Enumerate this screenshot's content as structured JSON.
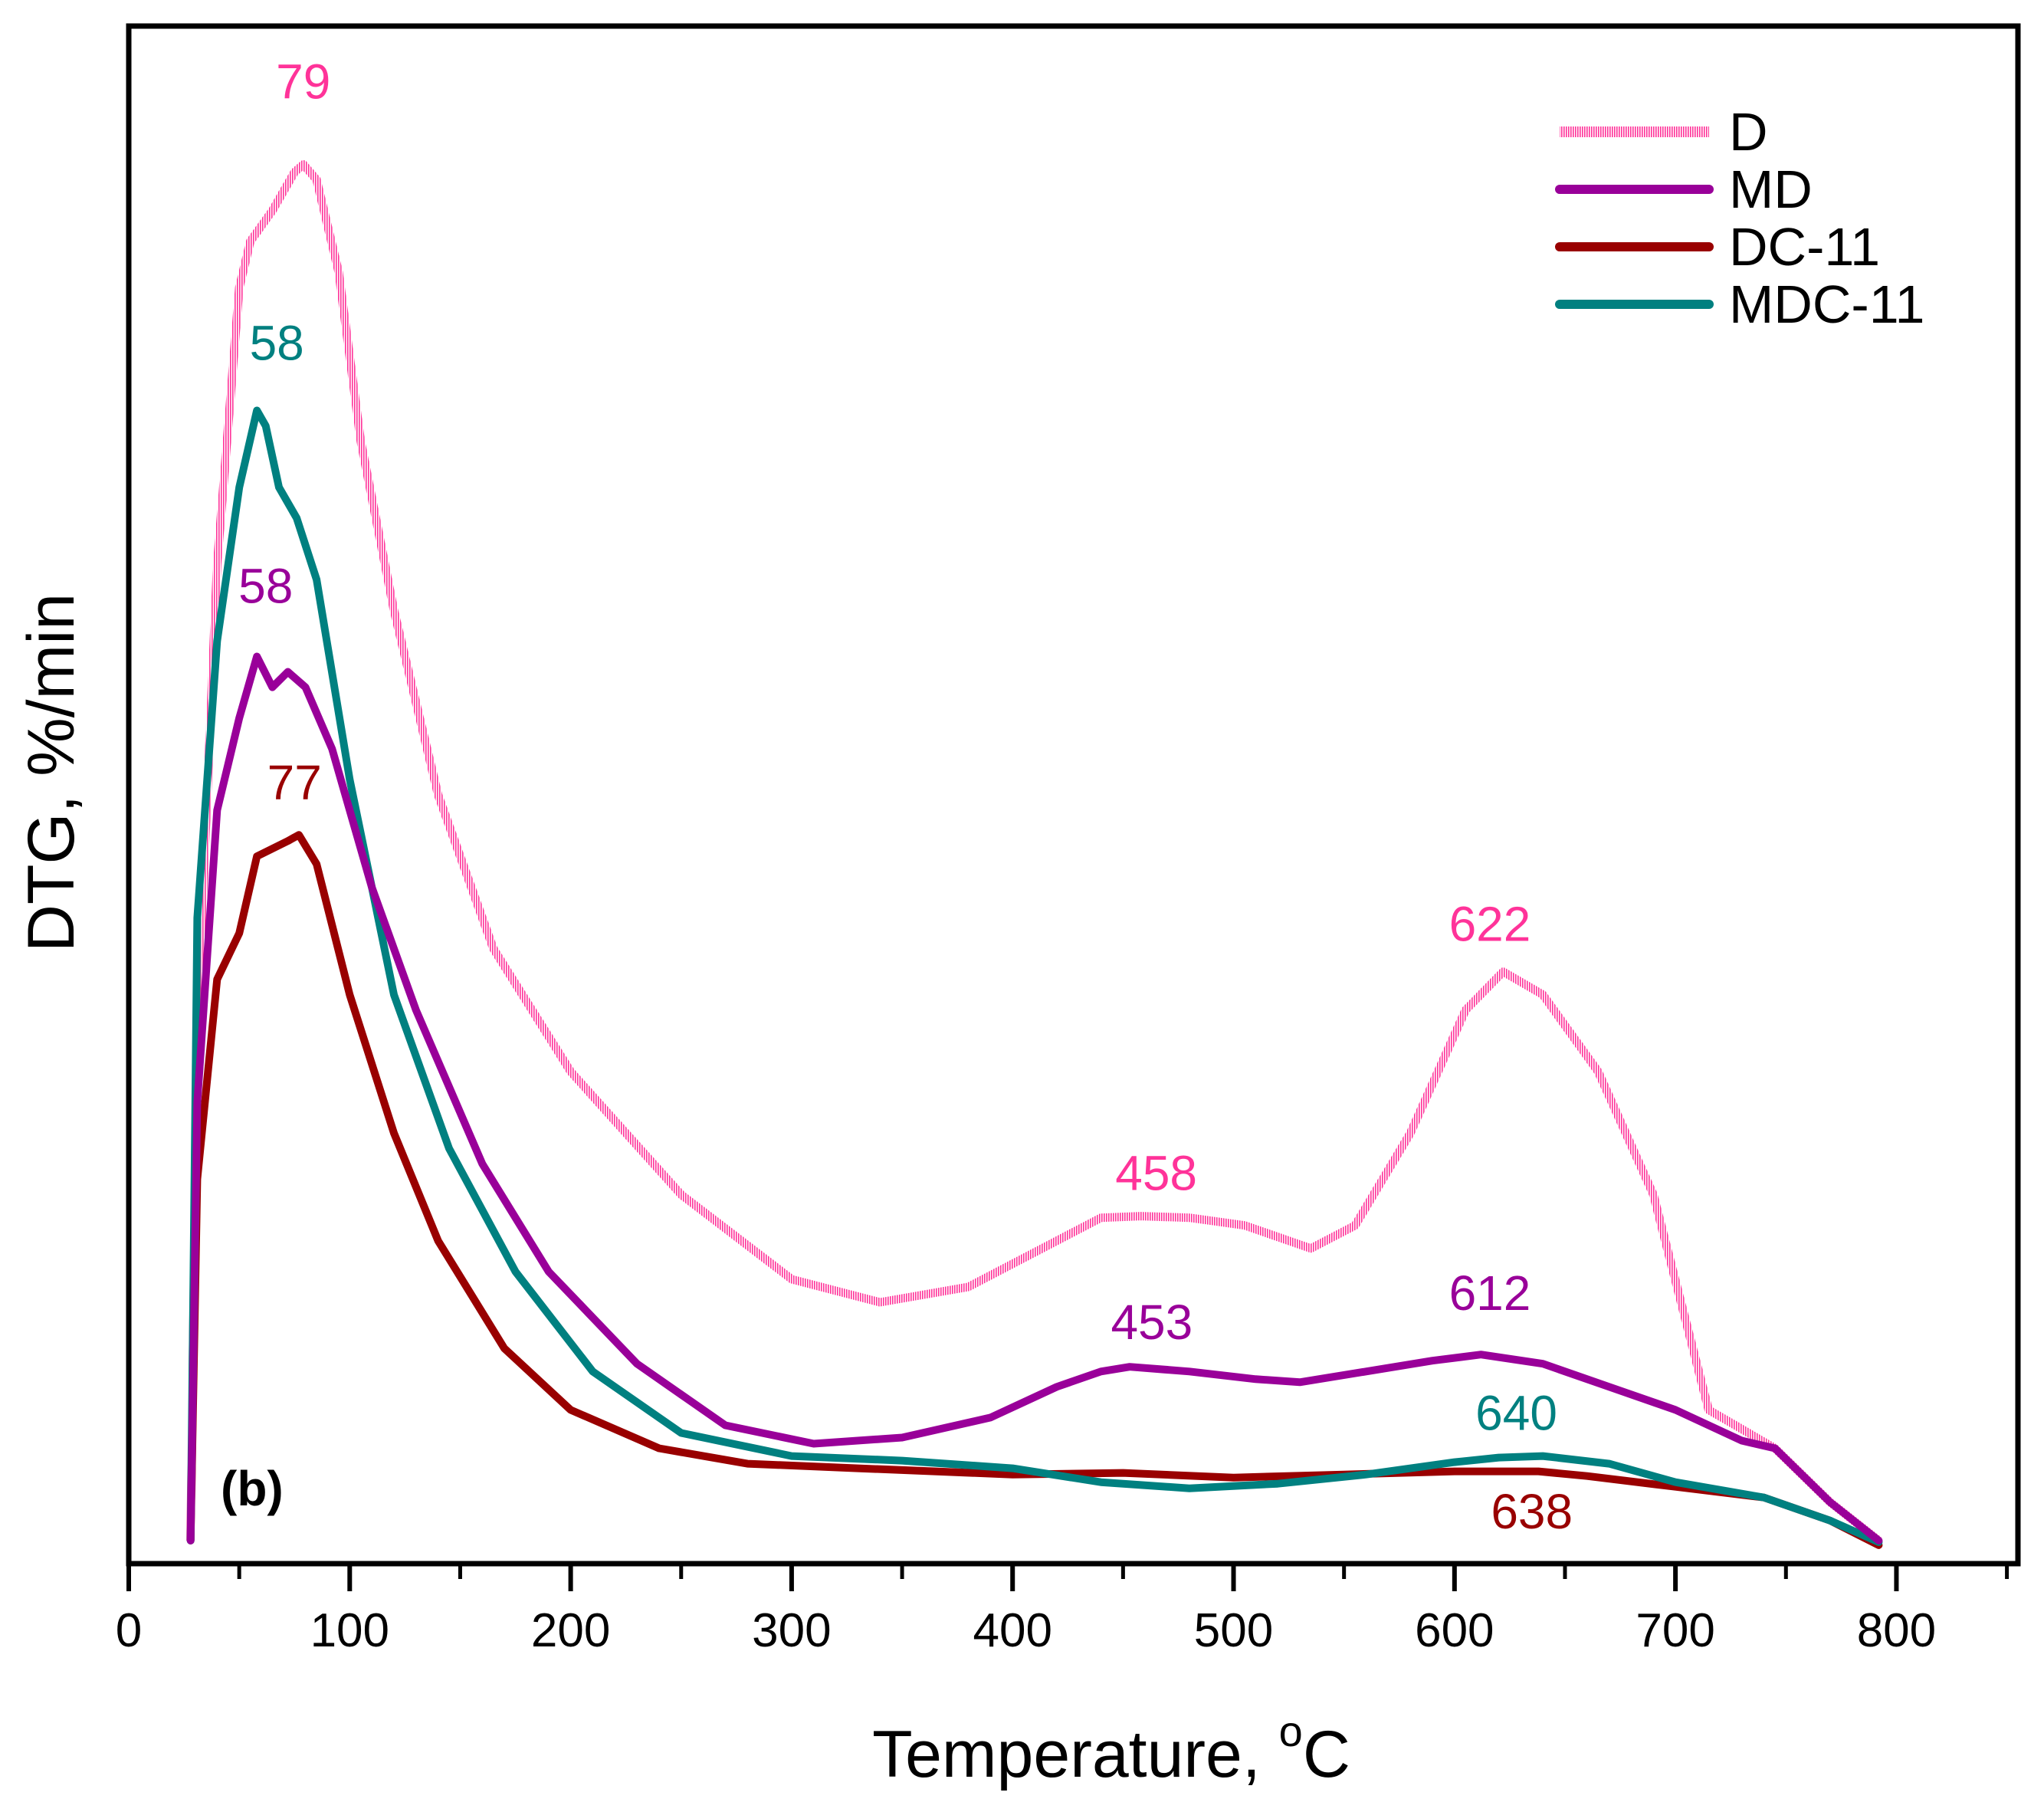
{
  "chart_data": {
    "type": "line",
    "panel_label": "(b)",
    "xlabel": "Temperature, ",
    "xlabel_sup": "o",
    "xlabel_suffix": "C",
    "ylabel": "DTG, %/min",
    "xlim": [
      0,
      855
    ],
    "ylim": [
      0,
      100
    ],
    "xticks": [
      0,
      100,
      200,
      300,
      400,
      500,
      600,
      700,
      800
    ],
    "y_tick_labels_shown": false,
    "legend_position": "top-right",
    "series": [
      {
        "name": "D",
        "color": "#ff3399",
        "style": "hatched",
        "points": [
          [
            28,
            1.5
          ],
          [
            31,
            35
          ],
          [
            40,
            65
          ],
          [
            50,
            83
          ],
          [
            55,
            86
          ],
          [
            65,
            88
          ],
          [
            75,
            90.5
          ],
          [
            79,
            91
          ],
          [
            85,
            90
          ],
          [
            95,
            84
          ],
          [
            105,
            73
          ],
          [
            120,
            62
          ],
          [
            140,
            50
          ],
          [
            165,
            40
          ],
          [
            200,
            32
          ],
          [
            250,
            24
          ],
          [
            300,
            18.5
          ],
          [
            340,
            17
          ],
          [
            380,
            18
          ],
          [
            420,
            21
          ],
          [
            440,
            22.5
          ],
          [
            458,
            22.6
          ],
          [
            480,
            22.5
          ],
          [
            505,
            22
          ],
          [
            535,
            20.5
          ],
          [
            555,
            22
          ],
          [
            580,
            28
          ],
          [
            605,
            36
          ],
          [
            622,
            38.5
          ],
          [
            640,
            37
          ],
          [
            665,
            32
          ],
          [
            690,
            24
          ],
          [
            715,
            10
          ],
          [
            745,
            7.5
          ],
          [
            770,
            4
          ],
          [
            792,
            1.5
          ]
        ]
      },
      {
        "name": "MD",
        "color": "#990099",
        "style": "solid",
        "points": [
          [
            28,
            1.5
          ],
          [
            31,
            30
          ],
          [
            40,
            49
          ],
          [
            50,
            55
          ],
          [
            58,
            59
          ],
          [
            65,
            57
          ],
          [
            72,
            58
          ],
          [
            80,
            57
          ],
          [
            92,
            53
          ],
          [
            110,
            44
          ],
          [
            130,
            36
          ],
          [
            160,
            26
          ],
          [
            190,
            19
          ],
          [
            230,
            13
          ],
          [
            270,
            9
          ],
          [
            310,
            7.8
          ],
          [
            350,
            8.2
          ],
          [
            390,
            9.5
          ],
          [
            420,
            11.5
          ],
          [
            440,
            12.5
          ],
          [
            453,
            12.8
          ],
          [
            480,
            12.5
          ],
          [
            510,
            12
          ],
          [
            530,
            11.8
          ],
          [
            560,
            12.5
          ],
          [
            590,
            13.2
          ],
          [
            612,
            13.6
          ],
          [
            640,
            13
          ],
          [
            670,
            11.5
          ],
          [
            700,
            10
          ],
          [
            730,
            8
          ],
          [
            745,
            7.5
          ],
          [
            770,
            4
          ],
          [
            792,
            1.5
          ]
        ]
      },
      {
        "name": "DC-11",
        "color": "#990000",
        "style": "solid",
        "points": [
          [
            28,
            1.5
          ],
          [
            31,
            25
          ],
          [
            40,
            38
          ],
          [
            50,
            41
          ],
          [
            58,
            46
          ],
          [
            65,
            46.5
          ],
          [
            72,
            47
          ],
          [
            77,
            47.4
          ],
          [
            85,
            45.5
          ],
          [
            100,
            37
          ],
          [
            120,
            28
          ],
          [
            140,
            21
          ],
          [
            170,
            14
          ],
          [
            200,
            10
          ],
          [
            240,
            7.5
          ],
          [
            280,
            6.5
          ],
          [
            330,
            6.2
          ],
          [
            400,
            5.8
          ],
          [
            450,
            5.9
          ],
          [
            500,
            5.6
          ],
          [
            550,
            5.8
          ],
          [
            600,
            6
          ],
          [
            638,
            6
          ],
          [
            660,
            5.7
          ],
          [
            700,
            5
          ],
          [
            740,
            4.3
          ],
          [
            770,
            2.8
          ],
          [
            792,
            1.2
          ]
        ]
      },
      {
        "name": "MDC-11",
        "color": "#008080",
        "style": "solid",
        "points": [
          [
            28,
            1.5
          ],
          [
            31,
            42
          ],
          [
            40,
            60
          ],
          [
            50,
            70
          ],
          [
            58,
            75
          ],
          [
            62,
            74
          ],
          [
            68,
            70
          ],
          [
            76,
            68
          ],
          [
            85,
            64
          ],
          [
            100,
            51
          ],
          [
            120,
            37
          ],
          [
            145,
            27
          ],
          [
            175,
            19
          ],
          [
            210,
            12.5
          ],
          [
            250,
            8.5
          ],
          [
            300,
            7
          ],
          [
            350,
            6.7
          ],
          [
            400,
            6.2
          ],
          [
            440,
            5.3
          ],
          [
            480,
            4.9
          ],
          [
            520,
            5.2
          ],
          [
            560,
            5.8
          ],
          [
            600,
            6.6
          ],
          [
            620,
            6.9
          ],
          [
            640,
            7
          ],
          [
            670,
            6.5
          ],
          [
            700,
            5.3
          ],
          [
            740,
            4.3
          ],
          [
            770,
            2.8
          ],
          [
            792,
            1.4
          ]
        ]
      }
    ],
    "annotations": [
      {
        "text": "79",
        "series": "D",
        "x": 79,
        "y": 95.3
      },
      {
        "text": "58",
        "series": "MDC-11",
        "x": 67,
        "y": 78.3
      },
      {
        "text": "58",
        "series": "MD",
        "x": 62,
        "y": 62.5
      },
      {
        "text": "77",
        "series": "DC-11",
        "x": 75,
        "y": 49.7
      },
      {
        "text": "622",
        "series": "D",
        "x": 616,
        "y": 40.5
      },
      {
        "text": "458",
        "series": "D",
        "x": 465,
        "y": 24.3
      },
      {
        "text": "453",
        "series": "MD",
        "x": 463,
        "y": 14.6
      },
      {
        "text": "612",
        "series": "MD",
        "x": 616,
        "y": 16.5
      },
      {
        "text": "640",
        "series": "MDC-11",
        "x": 628,
        "y": 8.7
      },
      {
        "text": "638",
        "series": "DC-11",
        "x": 635,
        "y": 2.3
      }
    ]
  }
}
